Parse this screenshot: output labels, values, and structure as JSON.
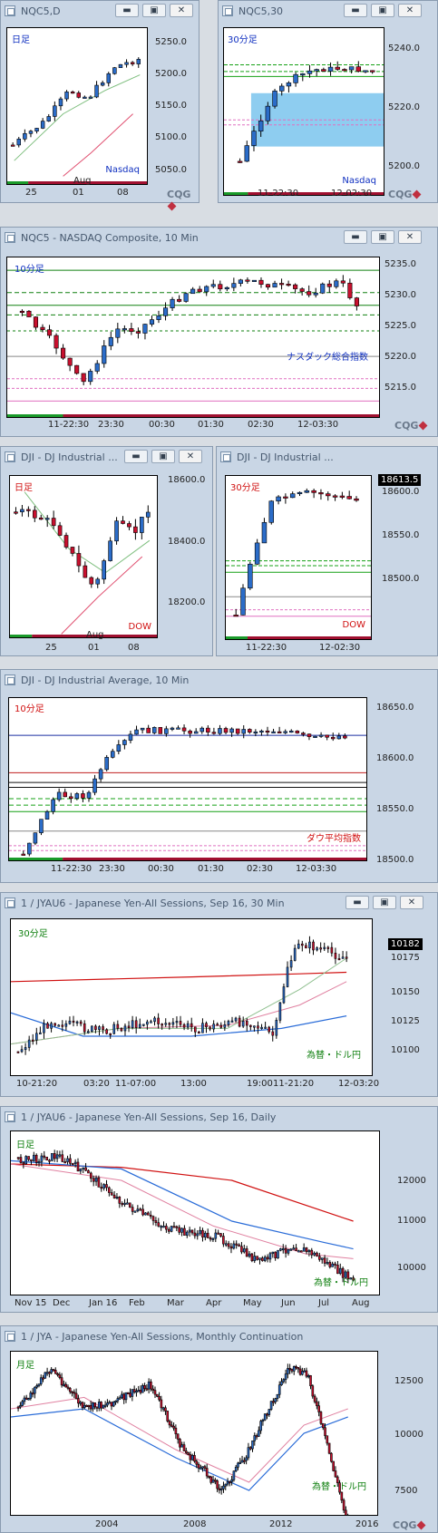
{
  "windows": [
    {
      "id": "w1",
      "title": "NQC5,D",
      "period_label": "日足",
      "period_color": "#1030c0",
      "instrument_label": "Nasdaq",
      "inst_color": "#1030c0",
      "yticks": [
        "5250.0",
        "5200.0",
        "5150.0",
        "5100.0",
        "5050.0"
      ],
      "xticks": [
        "25",
        "01",
        "08"
      ],
      "month_label": "Aug"
    },
    {
      "id": "w2",
      "title": "NQC5,30",
      "period_label": "30分足",
      "period_color": "#1030c0",
      "instrument_label": "Nasdaq",
      "inst_color": "#1030c0",
      "yticks": [
        "5240.0",
        "5220.0",
        "5200.0"
      ],
      "xticks": [
        "11-22:30",
        "12-02:30"
      ]
    },
    {
      "id": "w3",
      "title": "NQC5 - NASDAQ Composite, 10 Min",
      "period_label": "10分足",
      "period_color": "#1030c0",
      "instrument_label": "ナスダック総合指数",
      "inst_color": "#1030c0",
      "yticks": [
        "5235.0",
        "5230.0",
        "5225.0",
        "5220.0",
        "5215.0"
      ],
      "xticks": [
        "11-22:30",
        "23:30",
        "00:30",
        "01:30",
        "02:30",
        "12-03:30"
      ]
    },
    {
      "id": "w4",
      "title": "DJI - DJ Industrial ...",
      "period_label": "日足",
      "period_color": "#d01010",
      "instrument_label": "DOW",
      "inst_color": "#d01010",
      "yticks": [
        "18600.0",
        "18400.0",
        "18200.0"
      ],
      "xticks": [
        "25",
        "01",
        "08"
      ],
      "month_label": "Aug"
    },
    {
      "id": "w5",
      "title": "DJI - DJ Industrial ...",
      "period_label": "30分足",
      "period_color": "#d01010",
      "instrument_label": "DOW",
      "inst_color": "#d01010",
      "price_box": "18613.5",
      "yticks": [
        "18600.0",
        "18550.0",
        "18500.0"
      ],
      "xticks": [
        "11-22:30",
        "12-02:30"
      ]
    },
    {
      "id": "w6",
      "title": "DJI - DJ Industrial Average, 10 Min",
      "period_label": "10分足",
      "period_color": "#d01010",
      "instrument_label": "ダウ平均指数",
      "inst_color": "#d01010",
      "yticks": [
        "18650.0",
        "18600.0",
        "18550.0",
        "18500.0"
      ],
      "xticks": [
        "11-22:30",
        "23:30",
        "00:30",
        "01:30",
        "02:30",
        "12-03:30"
      ]
    },
    {
      "id": "w7",
      "title": "1 / JYAU6 - Japanese Yen-All Sessions, Sep 16, 30 Min",
      "period_label": "30分足",
      "period_color": "#108010",
      "instrument_label": "為替・ドル円",
      "inst_color": "#108010",
      "price_box": "10182",
      "yticks": [
        "10175",
        "10150",
        "10125",
        "10100"
      ],
      "xticks": [
        "10-21:20",
        "03:20",
        "11-07:00",
        "13:00",
        "19:00",
        "11-21:20",
        "12-03:20"
      ]
    },
    {
      "id": "w8",
      "title": "1 / JYAU6 - Japanese Yen-All Sessions, Sep 16, Daily",
      "period_label": "日足",
      "period_color": "#108010",
      "instrument_label": "為替・ドル円",
      "inst_color": "#108010",
      "yticks": [
        "12000",
        "11000",
        "10000"
      ],
      "xticks": [
        "Nov 15",
        "Dec",
        "Jan 16",
        "Feb",
        "Mar",
        "Apr",
        "May",
        "Jun",
        "Jul",
        "Aug"
      ]
    },
    {
      "id": "w9",
      "title": "1 / JYA - Japanese Yen-All Sessions, Monthly Continuation",
      "period_label": "月足",
      "period_color": "#108010",
      "instrument_label": "為替・ドル円",
      "inst_color": "#108010",
      "yticks": [
        "12500",
        "10000",
        "7500"
      ],
      "xticks": [
        "2004",
        "2008",
        "2012",
        "2016"
      ]
    }
  ],
  "window_buttons": {
    "minimize": "▬",
    "maximize": "▣",
    "close": "✕"
  },
  "brand": "CQG",
  "colors": {
    "up": "#2b6cc8",
    "down": "#c8102e",
    "tick_black": "#000000",
    "blue_zone": "#8ecdf0"
  }
}
